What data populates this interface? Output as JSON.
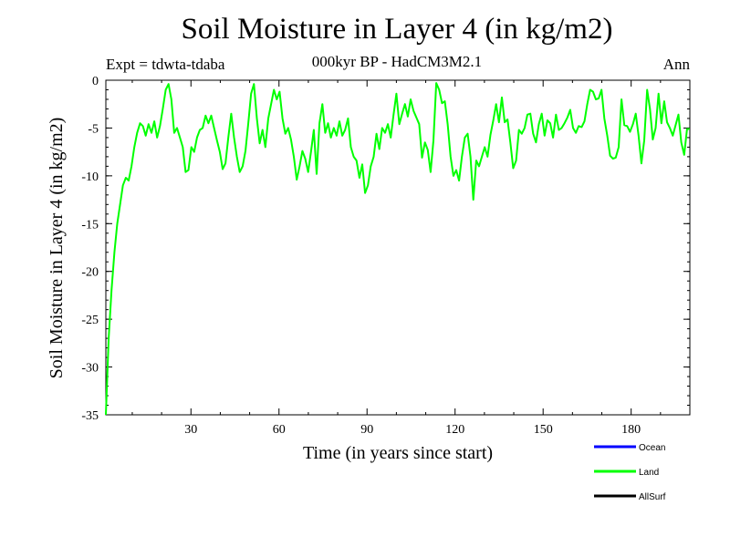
{
  "chart_data": {
    "type": "line",
    "title": "Soil Moisture in Layer 4 (in kg/m2)",
    "subtitle": "000kyr BP - HadCM3M2.1",
    "experiment": "Expt = tdwta-tdaba",
    "season": "Ann",
    "xlabel": "Time (in years since start)",
    "ylabel": "Soil Moisture in Layer 4 (in kg/m2)",
    "xlim": [
      1,
      200
    ],
    "ylim": [
      -35,
      0
    ],
    "xticks": [
      30,
      60,
      90,
      120,
      150,
      180
    ],
    "yticks": [
      0,
      -5,
      -10,
      -15,
      -20,
      -25,
      -30,
      -35
    ],
    "series": [
      {
        "name": "Ocean",
        "color": "#0000ff",
        "values": []
      },
      {
        "name": "Land",
        "color": "#00ff00",
        "values": [
          -35,
          -27,
          -22,
          -18,
          -15,
          -13,
          -11,
          -10.2,
          -10.5,
          -9,
          -7,
          -5.5,
          -4.5,
          -4.8,
          -5.8,
          -4.6,
          -5.5,
          -4.3,
          -6,
          -4.8,
          -3,
          -1,
          -0.4,
          -2,
          -5.5,
          -5,
          -6,
          -7,
          -9.6,
          -9.4,
          -7,
          -7.5,
          -6,
          -5.2,
          -5,
          -3.7,
          -4.5,
          -3.7,
          -5,
          -6.3,
          -7.5,
          -9.3,
          -8.7,
          -6,
          -3.5,
          -6,
          -8,
          -9.6,
          -9,
          -7.4,
          -4.5,
          -1.4,
          -0.4,
          -4,
          -6.6,
          -5.2,
          -7,
          -4,
          -2.5,
          -1,
          -2,
          -1.2,
          -4,
          -5.6,
          -5,
          -6.2,
          -8,
          -10.4,
          -9,
          -7.4,
          -8.2,
          -9.6,
          -7.5,
          -5.2,
          -9.8,
          -4.5,
          -2.5,
          -5.5,
          -4.5,
          -6,
          -5,
          -5.8,
          -4.3,
          -5.8,
          -5.2,
          -4,
          -7,
          -8,
          -8.4,
          -10.2,
          -8.8,
          -11.8,
          -11,
          -9,
          -8,
          -5.6,
          -7.2,
          -5,
          -5.5,
          -4.6,
          -6,
          -3.6,
          -1.4,
          -4.6,
          -3.5,
          -2.5,
          -3.8,
          -2,
          -3.2,
          -3.9,
          -4.6,
          -8.1,
          -6.5,
          -7.3,
          -9.6,
          -6.3,
          -0.3,
          -1,
          -2.4,
          -2.2,
          -4.6,
          -8,
          -10,
          -9.4,
          -10.5,
          -8,
          -6,
          -5.6,
          -8,
          -12.5,
          -8.4,
          -9,
          -8,
          -7,
          -8,
          -5.7,
          -4.2,
          -2.5,
          -4.4,
          -1.8,
          -4.4,
          -4.1,
          -6.5,
          -9.2,
          -8.4,
          -5.2,
          -5.6,
          -5,
          -3.6,
          -3.5,
          -5.6,
          -6.5,
          -4.6,
          -3.5,
          -5.8,
          -4.2,
          -4.5,
          -6,
          -3.6,
          -5.2,
          -5,
          -4.5,
          -3.9,
          -3.1,
          -5,
          -5.5,
          -4.8,
          -4.9,
          -4.3,
          -2.5,
          -1,
          -1.2,
          -2,
          -1.9,
          -1,
          -4,
          -5.8,
          -7.9,
          -8.2,
          -8.1,
          -7,
          -2,
          -4.7,
          -4.8,
          -5.4,
          -4.6,
          -3.5,
          -5.8,
          -8.7,
          -6.3,
          -1,
          -3,
          -6.2,
          -5,
          -1.4,
          -4.5,
          -2.2,
          -4.4,
          -5,
          -5.8,
          -4.7,
          -3.6,
          -6.5,
          -7.8,
          -5.1,
          -5.1
        ]
      },
      {
        "name": "AllSurf",
        "color": "#000000",
        "values": []
      }
    ]
  }
}
